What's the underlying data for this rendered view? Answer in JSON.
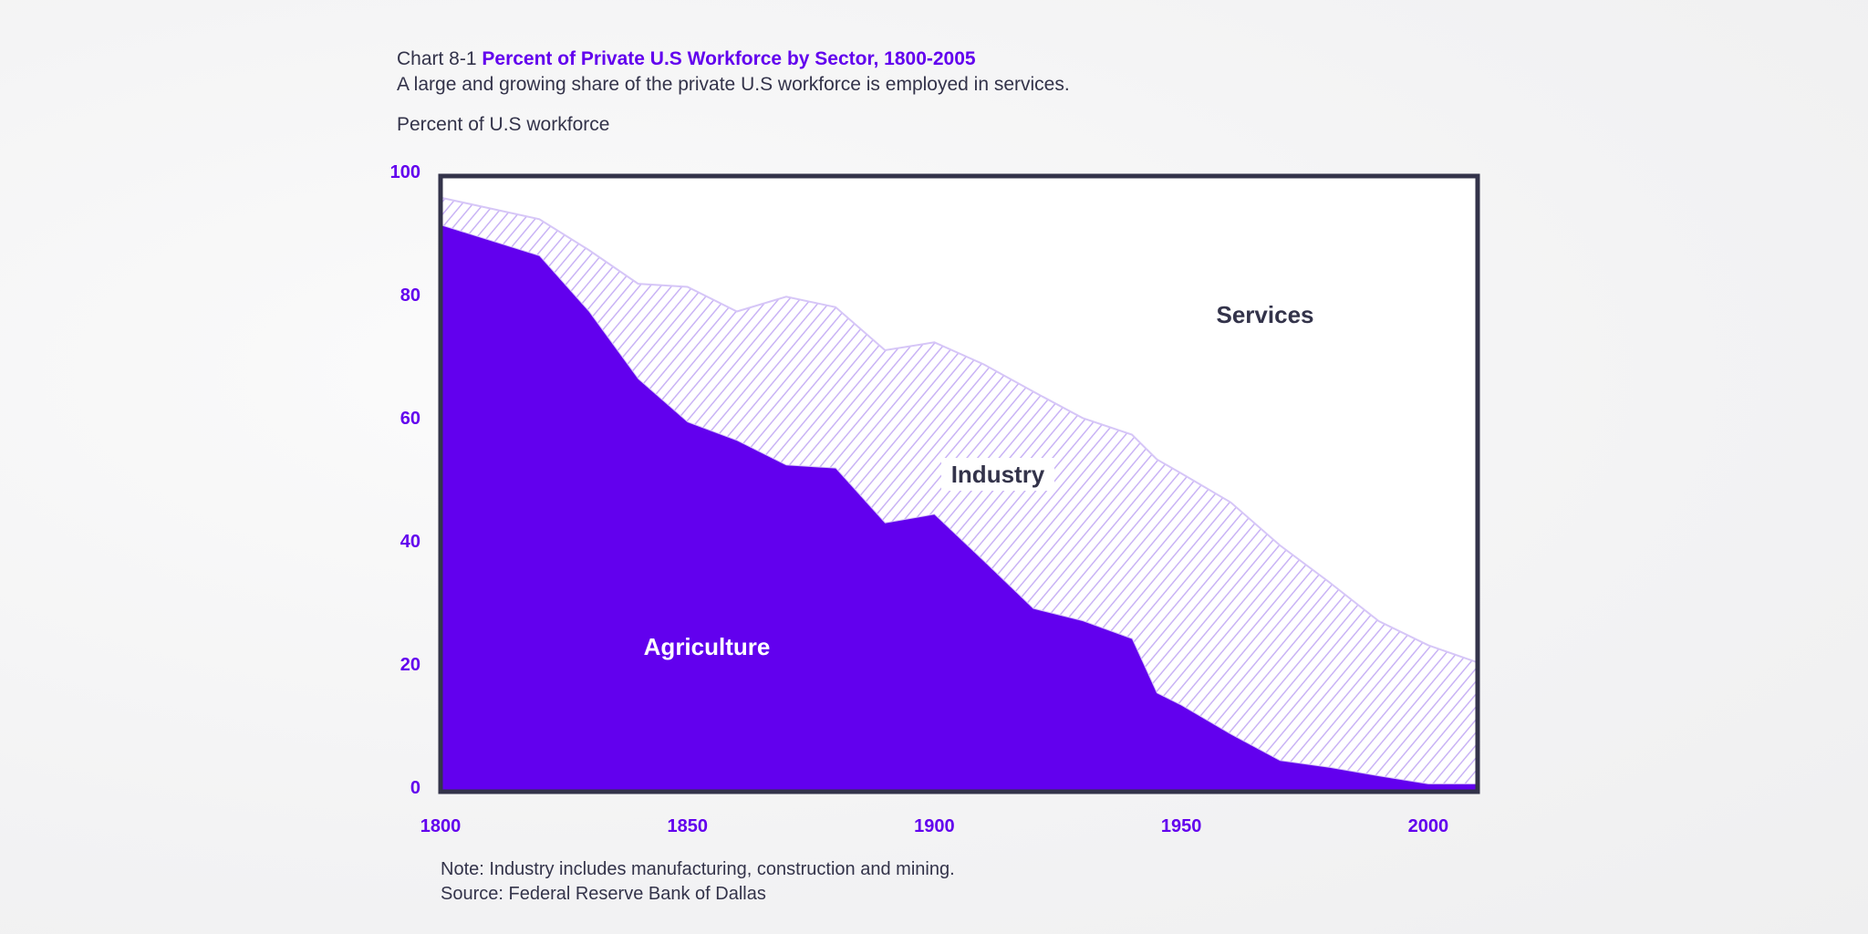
{
  "header": {
    "chart_number": "Chart 8-1",
    "title": "Percent of Private U.S Workforce by Sector, 1800-2005",
    "subtitle": "A large and growing share of the private U.S workforce is employed in services.",
    "ylabel": "Percent of U.S workforce"
  },
  "footer": {
    "note": "Note: Industry includes manufacturing, construction and mining.",
    "source": "Source: Federal Reserve Bank of Dallas"
  },
  "colors": {
    "agriculture": "#6200ee",
    "industry_hatch": "#c9b3f5",
    "services": "#ffffff",
    "axis": "#33334a",
    "tick": "#6200ee"
  },
  "chart_data": {
    "type": "area",
    "stacked": true,
    "title": "Percent of Private U.S Workforce by Sector, 1800-2005",
    "ylabel": "Percent of U.S workforce",
    "xlim": [
      1800,
      2010
    ],
    "ylim": [
      0,
      100
    ],
    "x_ticks": [
      "1800",
      "1850",
      "1900",
      "1950",
      "2000"
    ],
    "y_ticks": [
      "0",
      "20",
      "40",
      "60",
      "80",
      "100"
    ],
    "grid": false,
    "x": [
      1800,
      1820,
      1830,
      1840,
      1850,
      1860,
      1870,
      1880,
      1890,
      1900,
      1910,
      1920,
      1930,
      1940,
      1945,
      1950,
      1960,
      1970,
      1980,
      1990,
      2000,
      2010
    ],
    "series": [
      {
        "name": "Agriculture",
        "values": [
          92,
          87,
          78,
          67,
          60,
          57,
          53,
          52.5,
          43.6,
          45,
          37.4,
          29.7,
          27.7,
          24.8,
          16,
          14,
          9.3,
          5,
          3.9,
          2.5,
          1.2,
          1.2
        ]
      },
      {
        "name": "Industry",
        "values": [
          4.5,
          6,
          10,
          15.5,
          22,
          21,
          27.4,
          26.2,
          28.1,
          28,
          32,
          35.3,
          33,
          33.2,
          38,
          37.7,
          37.7,
          35,
          30.1,
          25.2,
          22.6,
          19.8
        ]
      },
      {
        "name": "Services",
        "values": [
          3.5,
          7,
          12,
          17.5,
          18,
          22,
          19.6,
          21.3,
          28.3,
          27,
          30.6,
          35,
          39.3,
          42,
          46,
          48.3,
          53,
          60,
          66,
          72.3,
          76.2,
          79
        ]
      }
    ],
    "labels": {
      "agriculture": "Agriculture",
      "industry": "Industry",
      "services": "Services"
    }
  }
}
